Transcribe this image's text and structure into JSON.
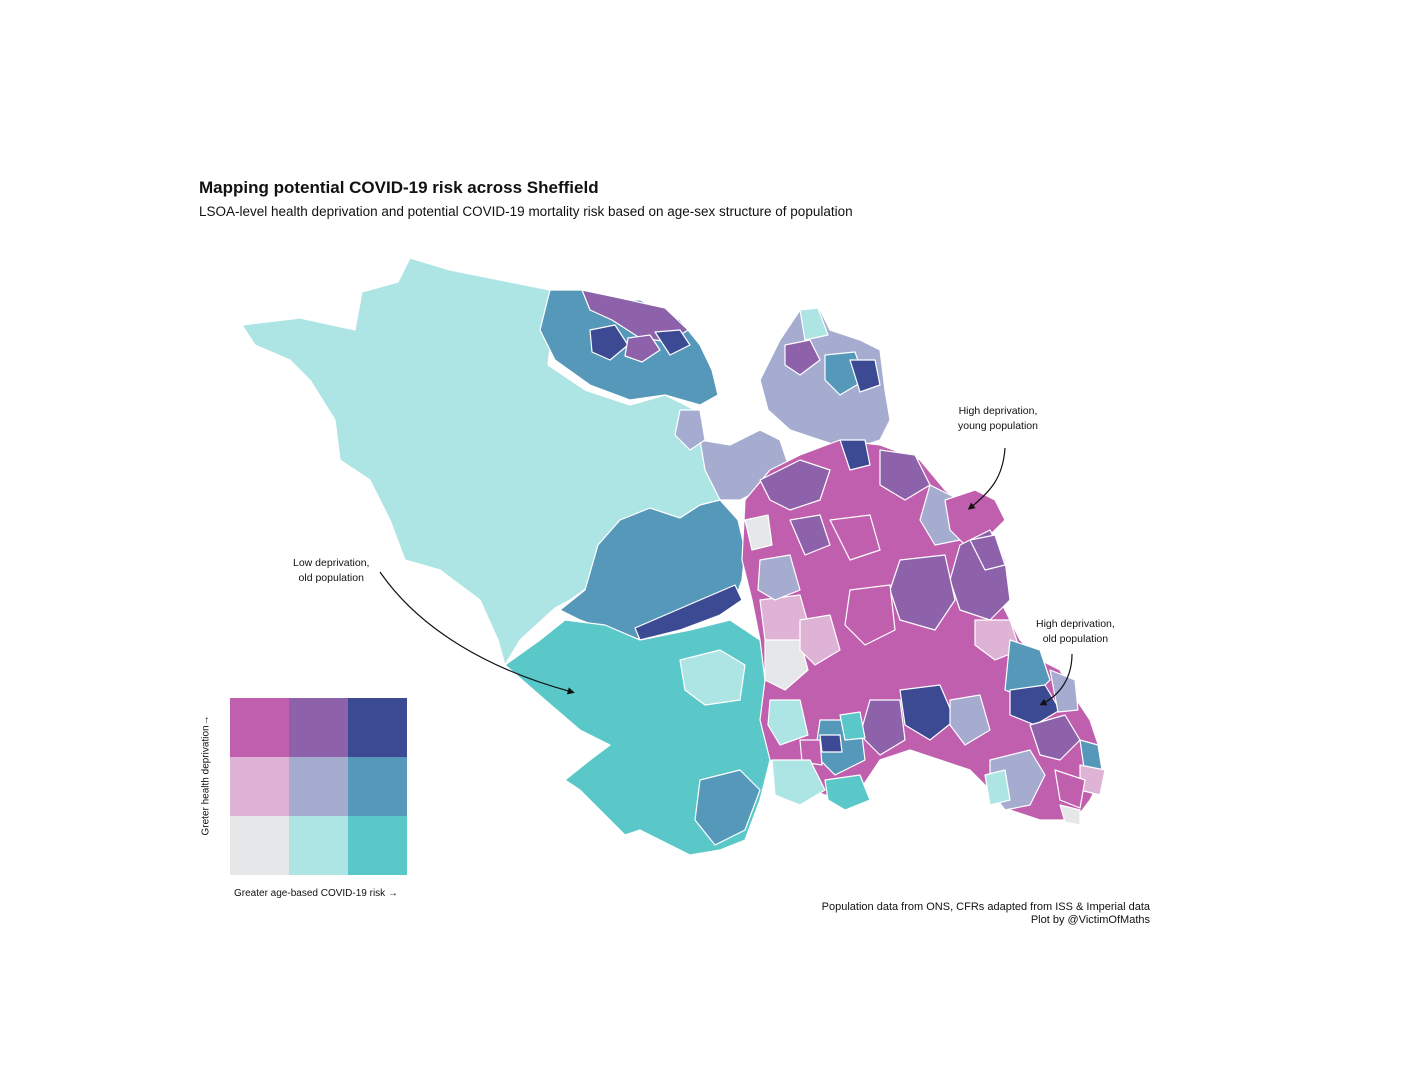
{
  "header": {
    "title": "Mapping potential COVID-19 risk across Sheffield",
    "subtitle": "LSOA-level health deprivation and potential COVID-19 mortality risk based on age-sex structure of population"
  },
  "annotations": {
    "high_young_line1": "High deprivation,",
    "high_young_line2": "young population",
    "low_old_line1": "Low deprivation,",
    "low_old_line2": "old population",
    "high_old_line1": "High deprivation,",
    "high_old_line2": "old population"
  },
  "legend": {
    "y_label": "Greter health deprivation→",
    "x_label": "Greater age-based COVID-19 risk →",
    "grid_colors": [
      [
        "#c05fae",
        "#8d62aa",
        "#3c4a94"
      ],
      [
        "#dfb3d6",
        "#a5acd0",
        "#5698b9"
      ],
      [
        "#e6e7e9",
        "#ade4e4",
        "#5ac8c8"
      ]
    ]
  },
  "footer": {
    "credit_line1": "Population data from ONS, CFRs adapted from ISS & Imperial data",
    "credit_line2": "Plot by @VictimOfMaths"
  }
}
